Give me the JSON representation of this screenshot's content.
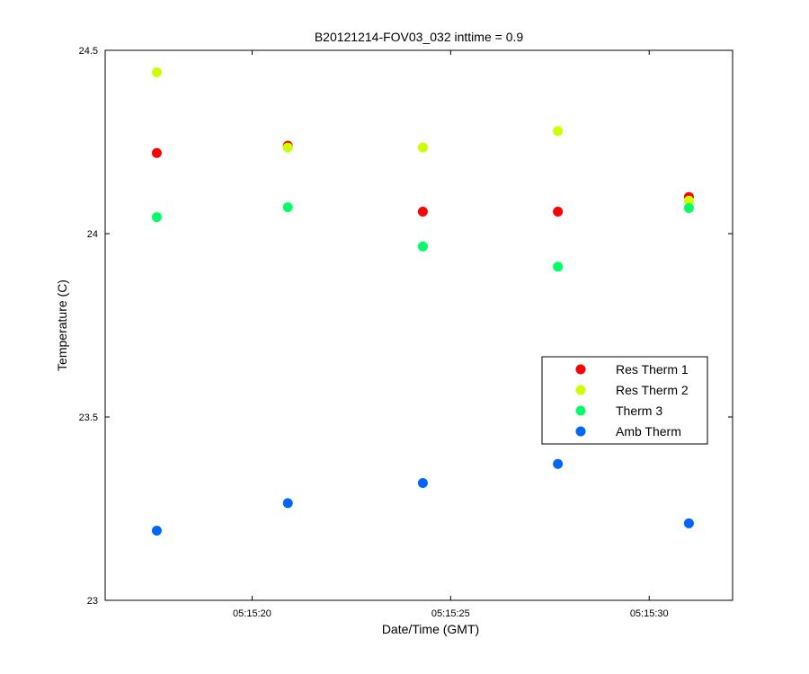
{
  "chart_data": {
    "type": "scatter",
    "title": "B20121214-FOV03_032 inttime = 0.9",
    "xlabel": "Date/Time (GMT)",
    "ylabel": "Temperature (C)",
    "xlim": [
      "05:15:16.3",
      "05:15:32.1"
    ],
    "ylim": [
      23,
      24.5
    ],
    "xticks": [
      {
        "value": "05:15:20",
        "label": "05:15:20"
      },
      {
        "value": "05:15:25",
        "label": "05:15:25"
      },
      {
        "value": "05:15:30",
        "label": "05:15:30"
      }
    ],
    "yticks": [
      {
        "value": 23,
        "label": "23"
      },
      {
        "value": 23.5,
        "label": "23.5"
      },
      {
        "value": 24,
        "label": "24"
      },
      {
        "value": 24.5,
        "label": "24.5"
      }
    ],
    "x": [
      "05:15:17.6",
      "05:15:20.9",
      "05:15:24.3",
      "05:15:27.7",
      "05:15:31.0"
    ],
    "series": [
      {
        "name": "Res Therm 1",
        "color": "#ff0000",
        "values": [
          24.22,
          24.24,
          24.06,
          24.06,
          24.1
        ]
      },
      {
        "name": "Res Therm 2",
        "color": "#ccff00",
        "values": [
          24.44,
          24.235,
          24.235,
          24.28,
          24.09
        ]
      },
      {
        "name": "Therm 3",
        "color": "#00ff66",
        "values": [
          24.045,
          24.072,
          23.965,
          23.91,
          24.07
        ]
      },
      {
        "name": "Amb Therm",
        "color": "#0066ff",
        "values": [
          23.19,
          23.265,
          23.32,
          23.372,
          23.21
        ]
      }
    ],
    "grid": false,
    "legend_position": "right"
  }
}
